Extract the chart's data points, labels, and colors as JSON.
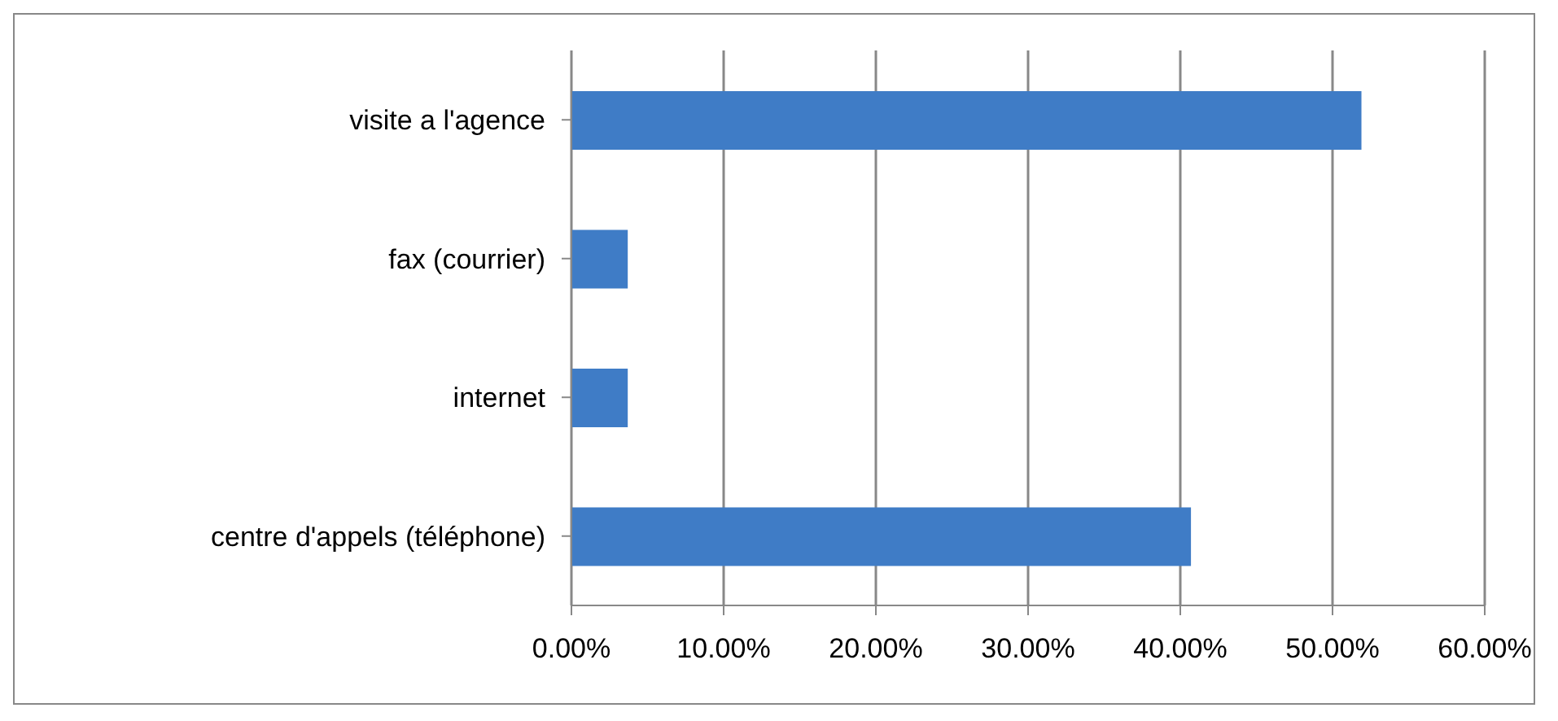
{
  "chart_data": {
    "type": "bar",
    "orientation": "horizontal",
    "categories": [
      "visite a l'agence",
      "fax (courrier)",
      "internet",
      "centre d'appels (téléphone)"
    ],
    "values": [
      51.9,
      3.7,
      3.7,
      40.7
    ],
    "color": "#3f7cc6",
    "xlim": [
      0,
      60
    ],
    "xticks": [
      {
        "value": 0,
        "label": "0.00%"
      },
      {
        "value": 10,
        "label": "10.00%"
      },
      {
        "value": 20,
        "label": "20.00%"
      },
      {
        "value": 30,
        "label": "30.00%"
      },
      {
        "value": 40,
        "label": "40.00%"
      },
      {
        "value": 50,
        "label": "50.00%"
      },
      {
        "value": 60,
        "label": "60.00%"
      }
    ],
    "grid": "x"
  }
}
